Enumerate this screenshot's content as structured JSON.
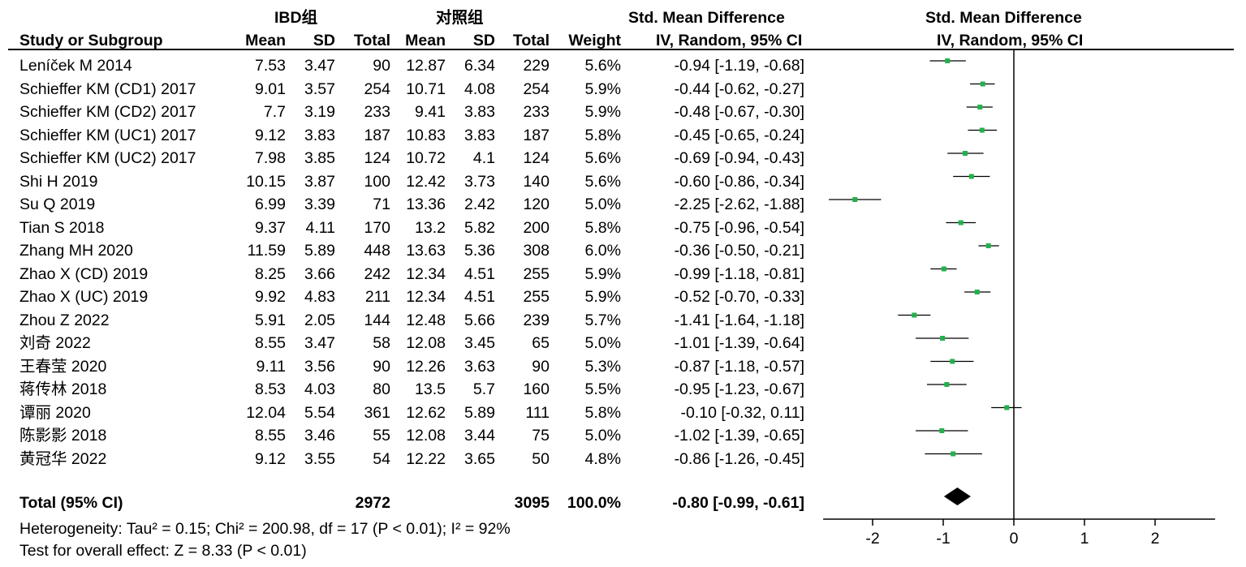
{
  "chart_data": {
    "type": "forest",
    "group_headers": {
      "experimental": "IBD组",
      "control": "对照组"
    },
    "columns": {
      "study": "Study or Subgroup",
      "mean1": "Mean",
      "sd1": "SD",
      "total1": "Total",
      "mean2": "Mean",
      "sd2": "SD",
      "total2": "Total",
      "weight": "Weight",
      "smd_title": "Std. Mean Difference",
      "smd_sub": "IV, Random, 95% CI"
    },
    "plot_header": {
      "title": "Std. Mean Difference",
      "sub": "IV, Random, 95% CI"
    },
    "studies": [
      {
        "name": "Leníček M 2014",
        "mean1": "7.53",
        "sd1": "3.47",
        "total1": "90",
        "mean2": "12.87",
        "sd2": "6.34",
        "total2": "229",
        "weight": "5.6%",
        "ci_text": "-0.94 [-1.19, -0.68]",
        "smd": -0.94,
        "lo": -1.19,
        "hi": -0.68
      },
      {
        "name": "Schieffer KM (CD1) 2017",
        "mean1": "9.01",
        "sd1": "3.57",
        "total1": "254",
        "mean2": "10.71",
        "sd2": "4.08",
        "total2": "254",
        "weight": "5.9%",
        "ci_text": "-0.44 [-0.62, -0.27]",
        "smd": -0.44,
        "lo": -0.62,
        "hi": -0.27
      },
      {
        "name": "Schieffer KM (CD2) 2017",
        "mean1": "7.7",
        "sd1": "3.19",
        "total1": "233",
        "mean2": "9.41",
        "sd2": "3.83",
        "total2": "233",
        "weight": "5.9%",
        "ci_text": "-0.48 [-0.67, -0.30]",
        "smd": -0.48,
        "lo": -0.67,
        "hi": -0.3
      },
      {
        "name": "Schieffer KM (UC1) 2017",
        "mean1": "9.12",
        "sd1": "3.83",
        "total1": "187",
        "mean2": "10.83",
        "sd2": "3.83",
        "total2": "187",
        "weight": "5.8%",
        "ci_text": "-0.45 [-0.65, -0.24]",
        "smd": -0.45,
        "lo": -0.65,
        "hi": -0.24
      },
      {
        "name": "Schieffer KM (UC2) 2017",
        "mean1": "7.98",
        "sd1": "3.85",
        "total1": "124",
        "mean2": "10.72",
        "sd2": "4.1",
        "total2": "124",
        "weight": "5.6%",
        "ci_text": "-0.69 [-0.94, -0.43]",
        "smd": -0.69,
        "lo": -0.94,
        "hi": -0.43
      },
      {
        "name": "Shi H 2019",
        "mean1": "10.15",
        "sd1": "3.87",
        "total1": "100",
        "mean2": "12.42",
        "sd2": "3.73",
        "total2": "140",
        "weight": "5.6%",
        "ci_text": "-0.60 [-0.86, -0.34]",
        "smd": -0.6,
        "lo": -0.86,
        "hi": -0.34
      },
      {
        "name": "Su Q 2019",
        "mean1": "6.99",
        "sd1": "3.39",
        "total1": "71",
        "mean2": "13.36",
        "sd2": "2.42",
        "total2": "120",
        "weight": "5.0%",
        "ci_text": "-2.25 [-2.62, -1.88]",
        "smd": -2.25,
        "lo": -2.62,
        "hi": -1.88
      },
      {
        "name": "Tian S 2018",
        "mean1": "9.37",
        "sd1": "4.11",
        "total1": "170",
        "mean2": "13.2",
        "sd2": "5.82",
        "total2": "200",
        "weight": "5.8%",
        "ci_text": "-0.75 [-0.96, -0.54]",
        "smd": -0.75,
        "lo": -0.96,
        "hi": -0.54
      },
      {
        "name": "Zhang MH 2020",
        "mean1": "11.59",
        "sd1": "5.89",
        "total1": "448",
        "mean2": "13.63",
        "sd2": "5.36",
        "total2": "308",
        "weight": "6.0%",
        "ci_text": "-0.36 [-0.50, -0.21]",
        "smd": -0.36,
        "lo": -0.5,
        "hi": -0.21
      },
      {
        "name": "Zhao X (CD) 2019",
        "mean1": "8.25",
        "sd1": "3.66",
        "total1": "242",
        "mean2": "12.34",
        "sd2": "4.51",
        "total2": "255",
        "weight": "5.9%",
        "ci_text": "-0.99 [-1.18, -0.81]",
        "smd": -0.99,
        "lo": -1.18,
        "hi": -0.81
      },
      {
        "name": "Zhao X (UC) 2019",
        "mean1": "9.92",
        "sd1": "4.83",
        "total1": "211",
        "mean2": "12.34",
        "sd2": "4.51",
        "total2": "255",
        "weight": "5.9%",
        "ci_text": "-0.52 [-0.70, -0.33]",
        "smd": -0.52,
        "lo": -0.7,
        "hi": -0.33
      },
      {
        "name": "Zhou Z 2022",
        "mean1": "5.91",
        "sd1": "2.05",
        "total1": "144",
        "mean2": "12.48",
        "sd2": "5.66",
        "total2": "239",
        "weight": "5.7%",
        "ci_text": "-1.41 [-1.64, -1.18]",
        "smd": -1.41,
        "lo": -1.64,
        "hi": -1.18
      },
      {
        "name": "刘奇 2022",
        "mean1": "8.55",
        "sd1": "3.47",
        "total1": "58",
        "mean2": "12.08",
        "sd2": "3.45",
        "total2": "65",
        "weight": "5.0%",
        "ci_text": "-1.01 [-1.39, -0.64]",
        "smd": -1.01,
        "lo": -1.39,
        "hi": -0.64
      },
      {
        "name": "王春莹 2020",
        "mean1": "9.11",
        "sd1": "3.56",
        "total1": "90",
        "mean2": "12.26",
        "sd2": "3.63",
        "total2": "90",
        "weight": "5.3%",
        "ci_text": "-0.87 [-1.18, -0.57]",
        "smd": -0.87,
        "lo": -1.18,
        "hi": -0.57
      },
      {
        "name": "蒋传林 2018",
        "mean1": "8.53",
        "sd1": "4.03",
        "total1": "80",
        "mean2": "13.5",
        "sd2": "5.7",
        "total2": "160",
        "weight": "5.5%",
        "ci_text": "-0.95 [-1.23, -0.67]",
        "smd": -0.95,
        "lo": -1.23,
        "hi": -0.67
      },
      {
        "name": "谭丽 2020",
        "mean1": "12.04",
        "sd1": "5.54",
        "total1": "361",
        "mean2": "12.62",
        "sd2": "5.89",
        "total2": "111",
        "weight": "5.8%",
        "ci_text": "-0.10 [-0.32, 0.11]",
        "smd": -0.1,
        "lo": -0.32,
        "hi": 0.11
      },
      {
        "name": "陈影影 2018",
        "mean1": "8.55",
        "sd1": "3.46",
        "total1": "55",
        "mean2": "12.08",
        "sd2": "3.44",
        "total2": "75",
        "weight": "5.0%",
        "ci_text": "-1.02 [-1.39, -0.65]",
        "smd": -1.02,
        "lo": -1.39,
        "hi": -0.65
      },
      {
        "name": "黄冠华 2022",
        "mean1": "9.12",
        "sd1": "3.55",
        "total1": "54",
        "mean2": "12.22",
        "sd2": "3.65",
        "total2": "50",
        "weight": "4.8%",
        "ci_text": "-0.86 [-1.26, -0.45]",
        "smd": -0.86,
        "lo": -1.26,
        "hi": -0.45
      }
    ],
    "total": {
      "label": "Total (95% CI)",
      "total1": "2972",
      "total2": "3095",
      "weight": "100.0%",
      "ci_text": "-0.80 [-0.99, -0.61]",
      "smd": -0.8,
      "lo": -0.99,
      "hi": -0.61
    },
    "heterogeneity": "Heterogeneity: Tau² = 0.15; Chi² = 200.98, df = 17 (P < 0.01); I² = 92%",
    "overall_effect": "Test for overall effect: Z = 8.33 (P < 0.01)",
    "x_axis": {
      "ticks": [
        -2,
        -1,
        0,
        1,
        2
      ],
      "tick_labels": [
        "-2",
        "-1",
        "0",
        "1",
        "2"
      ],
      "xlim": [
        -2.7,
        2.85
      ]
    },
    "colors": {
      "point": "#22b14c",
      "diamond": "#000000",
      "line": "#000000"
    }
  }
}
